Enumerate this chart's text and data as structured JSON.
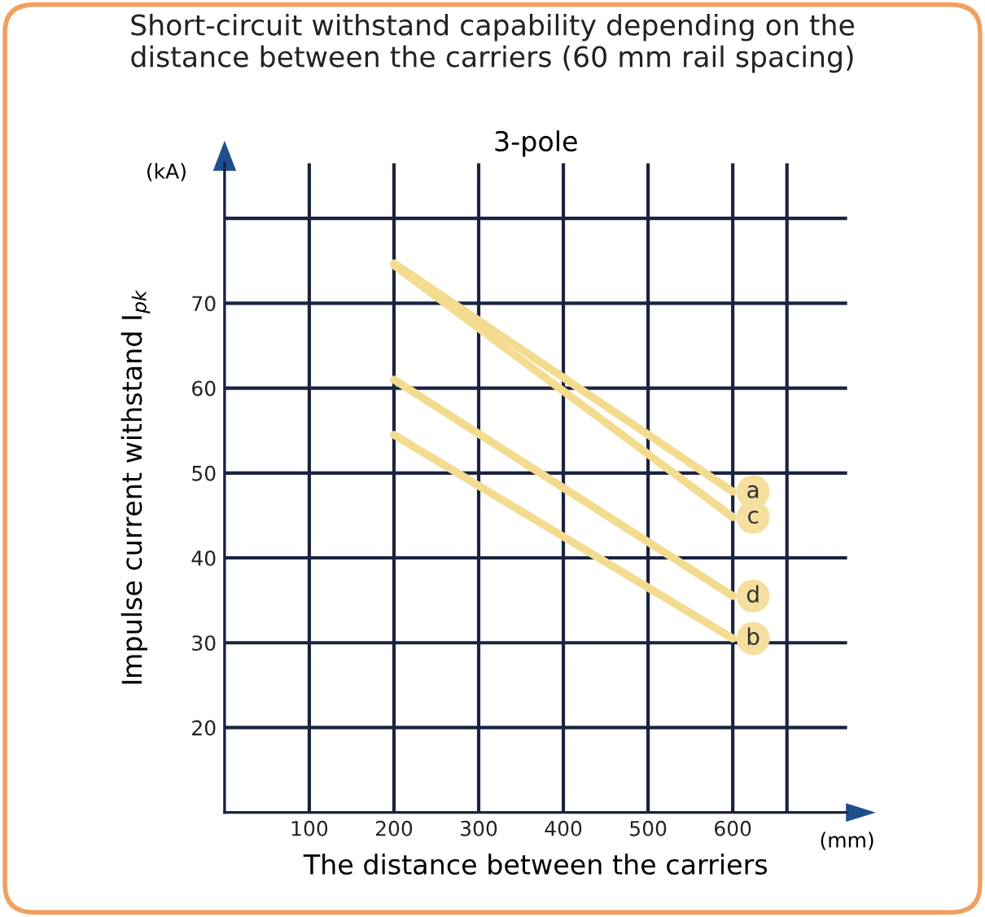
{
  "chart_data": {
    "type": "line",
    "title": "Short-circuit withstand capability depending on the\ndistance between the carriers (60 mm rail spacing)",
    "subtitle": "3-pole",
    "xlabel": "The distance between the carriers",
    "ylabel": "Impulse current withstand I$_{pk}$",
    "x": [
      200,
      600
    ],
    "series": [
      {
        "name": "a",
        "color": "#f3dc8f",
        "values": [
          74.7,
          47.8
        ]
      },
      {
        "name": "c",
        "color": "#f3dc8f",
        "values": [
          74.5,
          44.8
        ]
      },
      {
        "name": "d",
        "color": "#f3dc8f",
        "values": [
          61,
          35.5
        ]
      },
      {
        "name": "b",
        "color": "#f3dc8f",
        "values": [
          54.5,
          30.5
        ]
      }
    ],
    "xlim": [
      0,
      735
    ],
    "ylim": [
      10,
      86.5
    ],
    "xticks": [
      100,
      200,
      300,
      400,
      500,
      600,
      {
        "value": 664,
        "label": null
      }
    ],
    "yticks": [
      20,
      30,
      40,
      50,
      60,
      70,
      {
        "value": 80,
        "label": null
      }
    ],
    "annotations": [
      "(kA)",
      "(mm)"
    ],
    "grid": true,
    "legend": "right",
    "marker": "none",
    "line_style": "solid"
  }
}
